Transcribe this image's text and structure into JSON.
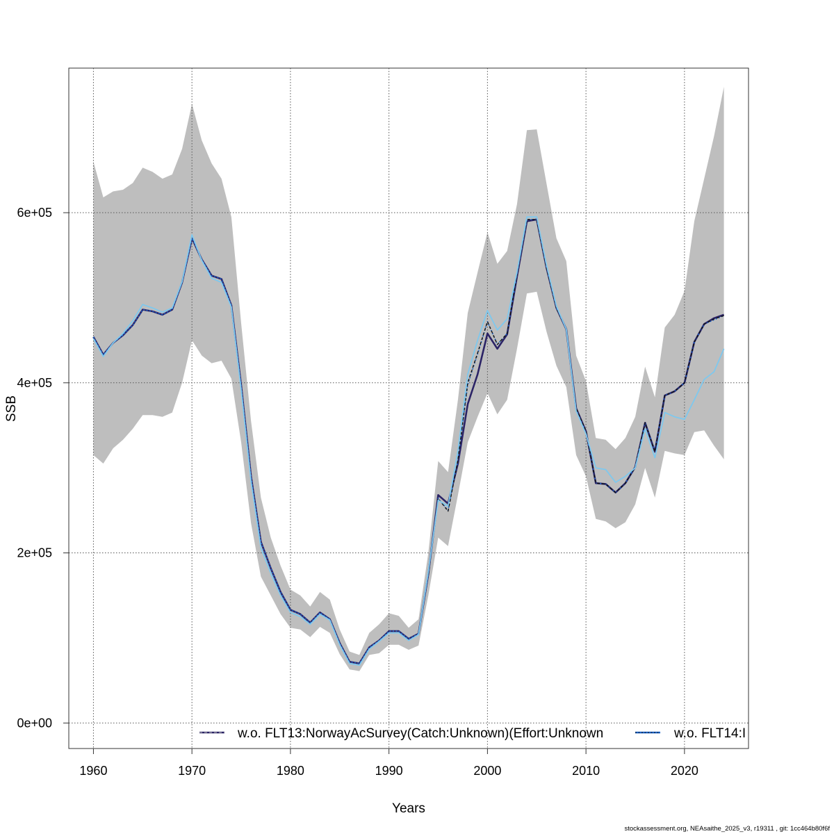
{
  "chart_data": {
    "type": "line",
    "title": "",
    "xlabel": "Years",
    "ylabel": "SSB",
    "xlim": [
      1957.5,
      2026.5
    ],
    "ylim": [
      -30000,
      770000
    ],
    "x_ticks": [
      1960,
      1970,
      1980,
      1990,
      2000,
      2010,
      2020
    ],
    "x_tick_labels": [
      "1960",
      "1970",
      "1980",
      "1990",
      "2000",
      "2010",
      "2020"
    ],
    "y_ticks": [
      0,
      200000,
      400000,
      600000
    ],
    "y_tick_labels": [
      "0e+00",
      "2e+05",
      "4e+05",
      "6e+05"
    ],
    "grid": true,
    "legend_position": "bottom-right",
    "years": [
      1960,
      1961,
      1962,
      1963,
      1964,
      1965,
      1966,
      1967,
      1968,
      1969,
      1970,
      1971,
      1972,
      1973,
      1974,
      1975,
      1976,
      1977,
      1978,
      1979,
      1980,
      1981,
      1982,
      1983,
      1984,
      1985,
      1986,
      1987,
      1988,
      1989,
      1990,
      1991,
      1992,
      1993,
      1994,
      1995,
      1996,
      1997,
      1998,
      1999,
      2000,
      2001,
      2002,
      2003,
      2004,
      2005,
      2006,
      2007,
      2008,
      2009,
      2010,
      2011,
      2012,
      2013,
      2014,
      2015,
      2016,
      2017,
      2018,
      2019,
      2020,
      2021,
      2022,
      2023,
      2024
    ],
    "band": {
      "upper": [
        660000,
        618000,
        625000,
        627000,
        635000,
        653000,
        648000,
        640000,
        645000,
        675000,
        728000,
        685000,
        658000,
        640000,
        595000,
        470000,
        355000,
        265000,
        218000,
        185000,
        157000,
        150000,
        137000,
        154000,
        145000,
        110000,
        84000,
        80000,
        106000,
        116000,
        129000,
        126000,
        112000,
        122000,
        200000,
        308000,
        295000,
        380000,
        482000,
        530000,
        577000,
        540000,
        555000,
        610000,
        697000,
        698000,
        634000,
        570000,
        543000,
        432000,
        402000,
        335000,
        333000,
        322000,
        335000,
        360000,
        419000,
        383000,
        465000,
        480000,
        508000,
        590000,
        640000,
        690000,
        748000
      ],
      "lower": [
        315000,
        305000,
        323000,
        333000,
        346000,
        362000,
        362000,
        360000,
        365000,
        400000,
        450000,
        432000,
        423000,
        426000,
        405000,
        330000,
        235000,
        172000,
        150000,
        128000,
        112000,
        110000,
        101000,
        113000,
        106000,
        81000,
        63000,
        61000,
        80000,
        82000,
        92000,
        92000,
        86000,
        91000,
        150000,
        218000,
        208000,
        268000,
        330000,
        360000,
        388000,
        363000,
        380000,
        440000,
        505000,
        507000,
        460000,
        420000,
        395000,
        315000,
        290000,
        240000,
        237000,
        229000,
        236000,
        257000,
        300000,
        265000,
        320000,
        317000,
        315000,
        342000,
        344000,
        326000,
        310000
      ]
    },
    "series": [
      {
        "name": "w.o. FLT13:NorwayAcSurvey(Catch:Unknown)(Effort:Unknown",
        "color": "#2b2366",
        "style": "solid",
        "values": [
          454000,
          433000,
          447000,
          456000,
          468000,
          486000,
          484000,
          480000,
          486000,
          518000,
          570000,
          545000,
          526000,
          522000,
          491000,
          397000,
          290000,
          213000,
          182000,
          154000,
          133000,
          128000,
          118000,
          130000,
          122000,
          94000,
          72000,
          70000,
          89000,
          97000,
          108000,
          108000,
          99000,
          105000,
          175000,
          268000,
          258000,
          305000,
          375000,
          410000,
          458000,
          440000,
          457000,
          525000,
          590000,
          592000,
          535000,
          488000,
          463000,
          370000,
          343000,
          282000,
          281000,
          271000,
          282000,
          301000,
          353000,
          319000,
          385000,
          390000,
          400000,
          448000,
          469000,
          476000,
          480000
        ]
      },
      {
        "name": "w.o. FLT14:I",
        "color": "#1a63c8",
        "style": "dotted",
        "values": [
          454000,
          433000,
          447000,
          456000,
          468000,
          486000,
          484000,
          480000,
          486000,
          518000,
          570000,
          545000,
          526000,
          522000,
          491000,
          397000,
          290000,
          213000,
          182000,
          154000,
          133000,
          128000,
          118000,
          130000,
          122000,
          94000,
          72000,
          70000,
          89000,
          97000,
          108000,
          108000,
          99000,
          105000,
          175000,
          264000,
          250000,
          309000,
          398000,
          434000,
          472000,
          445000,
          458000,
          528000,
          592000,
          592000,
          535000,
          488000,
          463000,
          368000,
          342000,
          282000,
          281000,
          271000,
          282000,
          301000,
          353000,
          320000,
          385000,
          390000,
          400000,
          448000,
          469000,
          474000,
          479000
        ]
      },
      {
        "name": "",
        "color": "#111111",
        "style": "dashed",
        "values": [
          null,
          null,
          null,
          null,
          null,
          null,
          null,
          null,
          null,
          null,
          null,
          null,
          null,
          null,
          null,
          null,
          null,
          null,
          null,
          null,
          null,
          null,
          null,
          null,
          null,
          null,
          null,
          null,
          null,
          null,
          null,
          null,
          null,
          null,
          175000,
          264000,
          249000,
          309000,
          400000,
          435000,
          472000,
          445000,
          458000,
          528000,
          592000,
          592000,
          535000,
          488000,
          463000,
          370000,
          343000,
          282000,
          281000,
          271000,
          282000,
          301000,
          353000,
          319000,
          385000,
          390000,
          400000,
          448000,
          469000,
          475000,
          479000
        ]
      },
      {
        "name": "",
        "color": "#7ec8ee",
        "style": "solid",
        "values": [
          452000,
          431000,
          447000,
          458000,
          473000,
          492000,
          488000,
          483000,
          488000,
          519000,
          574000,
          544000,
          523000,
          518000,
          489000,
          392000,
          284000,
          206000,
          176000,
          150000,
          130000,
          125000,
          116000,
          128000,
          121000,
          92000,
          70000,
          68000,
          87000,
          96000,
          106000,
          106000,
          97000,
          104000,
          178000,
          262000,
          255000,
          320000,
          410000,
          450000,
          485000,
          462000,
          475000,
          530000,
          595000,
          595000,
          538000,
          490000,
          463000,
          367000,
          340000,
          300000,
          298000,
          283000,
          290000,
          300000,
          346000,
          312000,
          365000,
          360000,
          357000,
          380000,
          404000,
          413000,
          440000
        ]
      }
    ]
  },
  "footer": "stockassessment.org, NEAsaithe_2025_v3, r19311 , git: 1cc464b80f6f"
}
